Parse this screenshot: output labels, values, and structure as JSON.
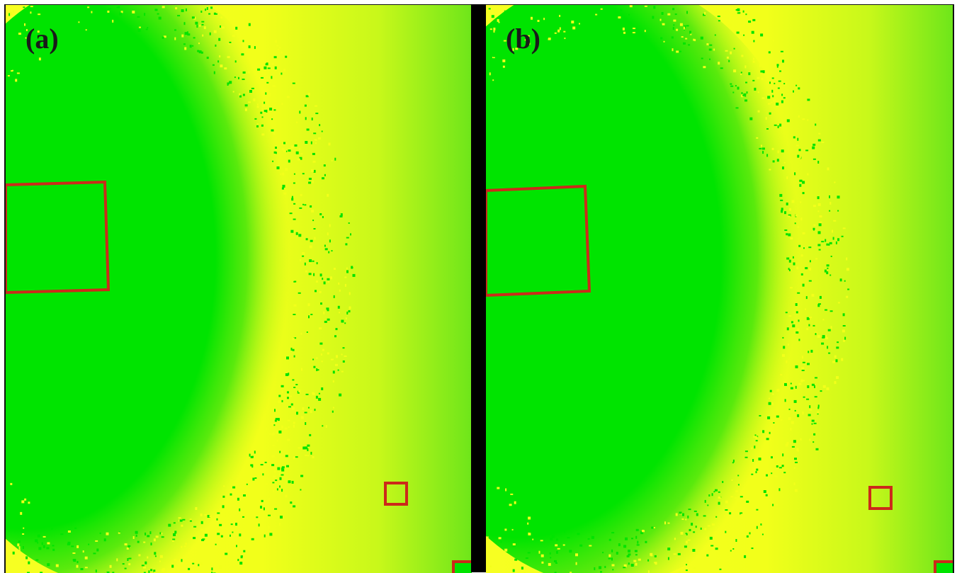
{
  "panels": [
    {
      "label": "(a)"
    },
    {
      "label": "(b)"
    }
  ],
  "colors": {
    "core_green": "#00e400",
    "mid_yellow": "#f2ff1a",
    "edge_green": "#78e61a",
    "roi_outline": "#cc2a1a",
    "divider": "#000000"
  }
}
